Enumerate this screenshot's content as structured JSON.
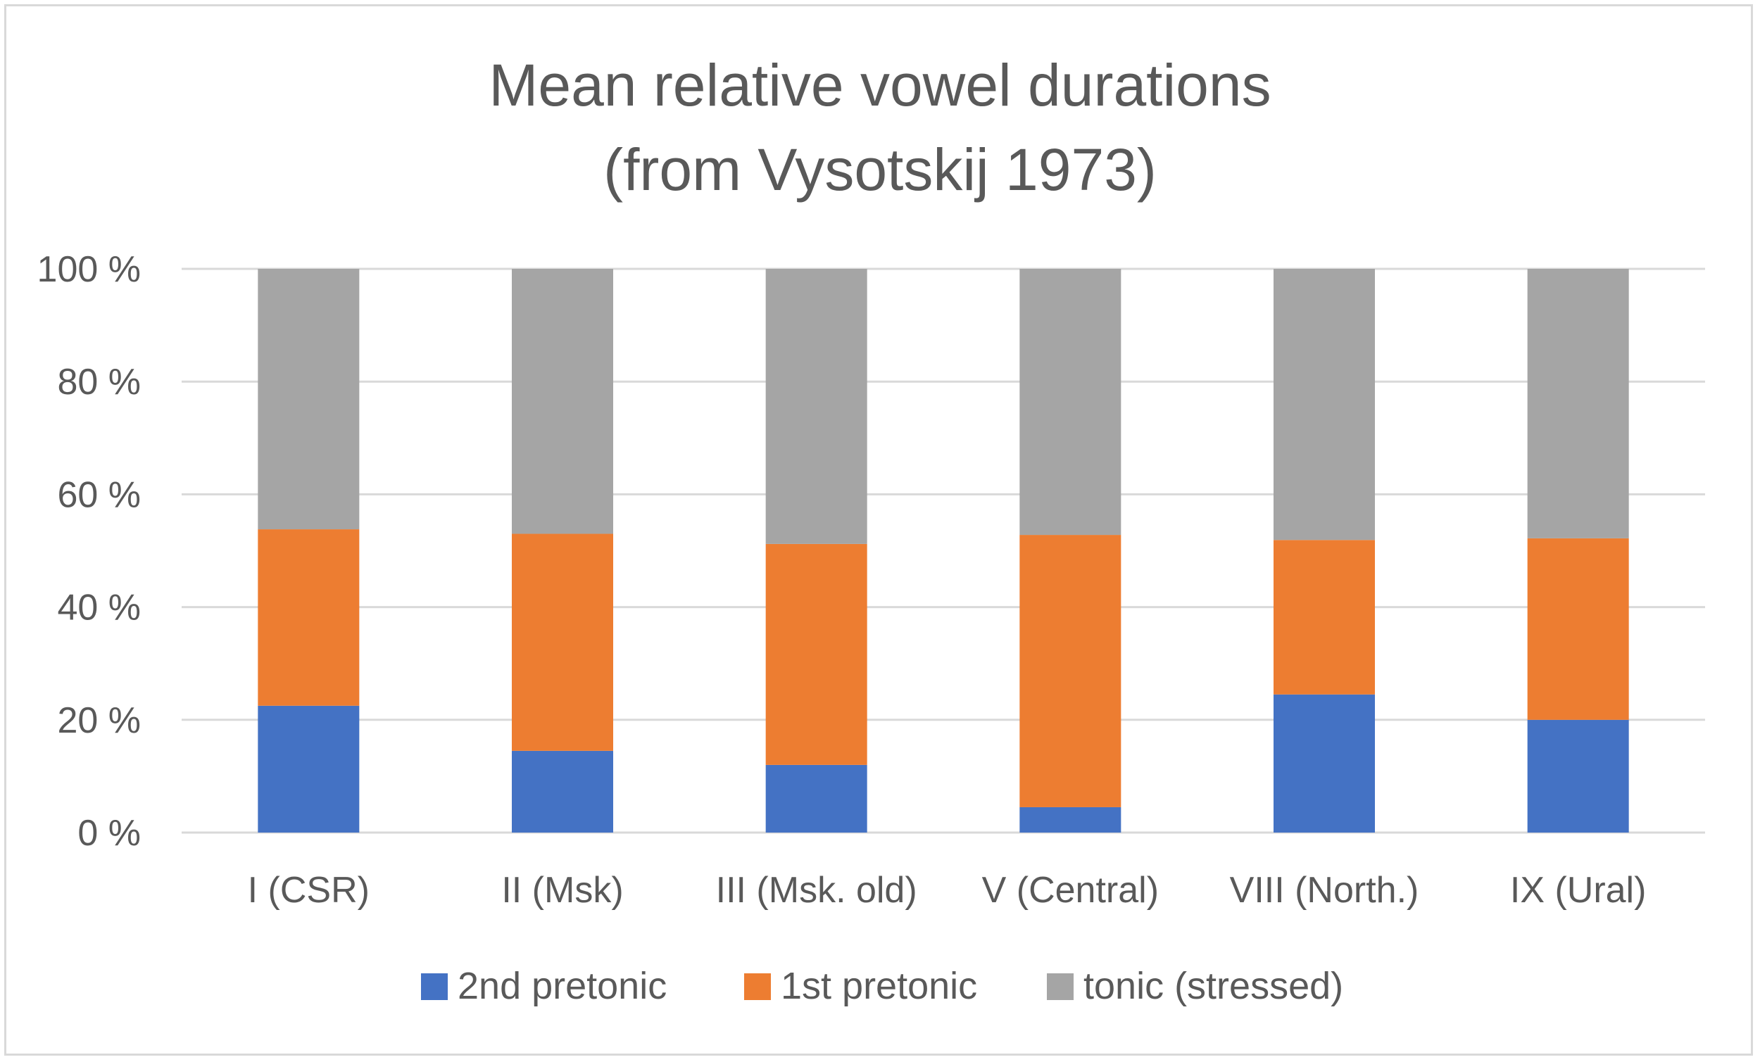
{
  "chart_data": {
    "type": "bar",
    "stacked": true,
    "percent_stacked": true,
    "title_lines": [
      "Mean relative vowel durations",
      "(from Vysotskij 1973)"
    ],
    "xlabel": "",
    "ylabel": "",
    "ylim": [
      0,
      100
    ],
    "y_ticks": [
      0,
      20,
      40,
      60,
      80,
      100
    ],
    "y_tick_labels": [
      "0 %",
      "20 %",
      "40 %",
      "60 %",
      "80 %",
      "100 %"
    ],
    "grid": true,
    "legend_position": "bottom",
    "categories": [
      "I (CSR)",
      "II (Msk)",
      "III (Msk. old)",
      "V (Central)",
      "VIII (North.)",
      "IX (Ural)"
    ],
    "series": [
      {
        "name": "2nd pretonic",
        "color": "#4472c4",
        "values": [
          22.5,
          14.5,
          12,
          4.5,
          24.5,
          20
        ]
      },
      {
        "name": "1st pretonic",
        "color": "#ed7d31",
        "values": [
          31.3,
          38.5,
          39.2,
          48.3,
          27.4,
          32.2
        ]
      },
      {
        "name": "tonic (stressed)",
        "color": "#a5a5a5",
        "values": [
          46.2,
          47,
          48.8,
          47.2,
          48.1,
          47.8
        ]
      }
    ],
    "colors": {
      "gridline": "#d9d9d9",
      "text": "#595959"
    }
  }
}
